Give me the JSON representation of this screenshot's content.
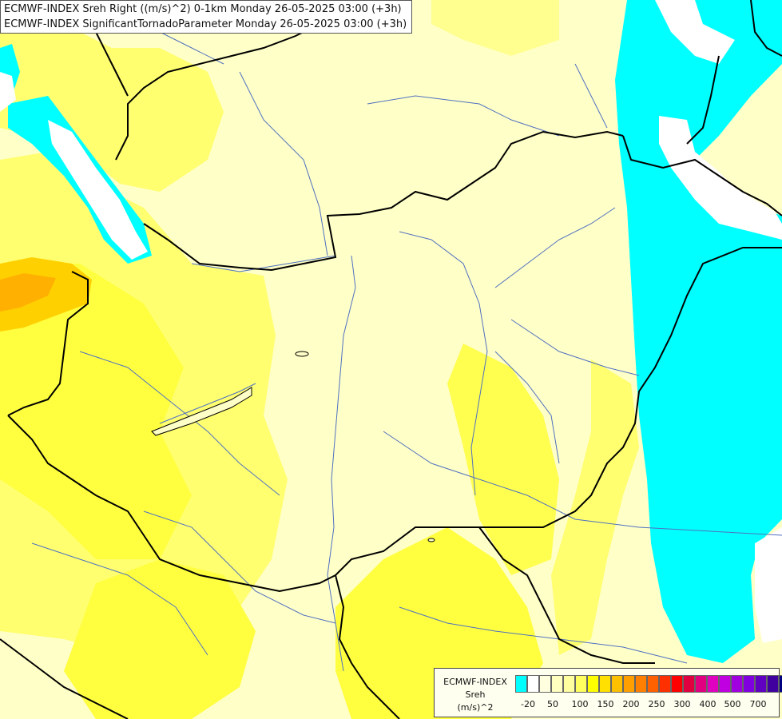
{
  "title": {
    "line1": "ECMWF-INDEX Sreh Right ((m/s)^2) 0-1km Monday 26-05-2025 03:00 (+3h)",
    "line2": "ECMWF-INDEX SignificantTornadoParameter Monday 26-05-2025 03:00 (+3h)"
  },
  "legend": {
    "model": "ECMWF-INDEX",
    "parameter": "Sreh",
    "unit": "(m/s)^2",
    "colors": [
      "#00ffff",
      "#ffffff",
      "#ffffe0",
      "#ffffc0",
      "#ffffa0",
      "#ffff60",
      "#ffff00",
      "#ffe000",
      "#ffc000",
      "#ffa000",
      "#ff8000",
      "#ff6000",
      "#ff3000",
      "#ff0000",
      "#e00040",
      "#e00080",
      "#e000c0",
      "#c000e0",
      "#a000e0",
      "#8000e0",
      "#6000c0",
      "#4000a0",
      "#000080"
    ],
    "ticks": [
      "-20",
      "50",
      "100",
      "150",
      "200",
      "250",
      "300",
      "400",
      "500",
      "700"
    ]
  },
  "colors": {
    "cyan": "#00ffff",
    "pale_yellow": "#ffffc0",
    "light_yellow": "#ffff90",
    "yellow": "#ffff40",
    "orange": "#ffc000",
    "border": "#000000",
    "river": "#5070c0"
  }
}
